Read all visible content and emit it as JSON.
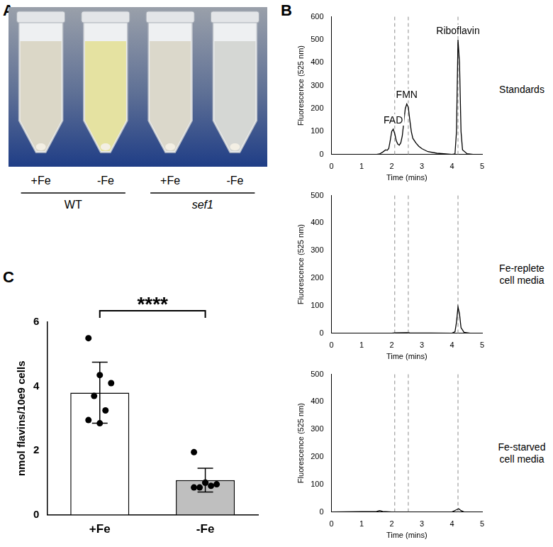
{
  "photo": {
    "panel_label": "A",
    "tubes": [
      {
        "condition": "+Fe",
        "color": "#d9d5c4"
      },
      {
        "condition": "-Fe",
        "color": "#e4e09c"
      },
      {
        "condition": "+Fe",
        "color": "#d9d6c8"
      },
      {
        "condition": "-Fe",
        "color": "#d3d5d2"
      }
    ],
    "groups": [
      {
        "label": "WT",
        "italic": false
      },
      {
        "label": "sef1",
        "italic": true
      }
    ]
  },
  "chart_data": [
    {
      "type": "line",
      "panel_label": "B",
      "title": "Standards",
      "xlabel": "Time (mins)",
      "ylabel": "Fluorescence (525 nm)",
      "color": "#000000",
      "x": [
        0,
        1.0,
        1.5,
        1.6,
        1.7,
        1.8,
        1.85,
        1.9,
        1.95,
        2.0,
        2.05,
        2.1,
        2.15,
        2.2,
        2.25,
        2.3,
        2.35,
        2.4,
        2.45,
        2.5,
        2.55,
        2.6,
        2.65,
        2.7,
        2.8,
        2.9,
        3.0,
        3.2,
        3.5,
        3.8,
        4.0,
        4.1,
        4.15,
        4.2,
        4.25,
        4.3,
        4.35,
        4.5,
        4.7,
        5.0
      ],
      "values": [
        0,
        0,
        0,
        2,
        10,
        20,
        18,
        25,
        60,
        100,
        110,
        90,
        60,
        45,
        40,
        50,
        80,
        140,
        200,
        220,
        205,
        150,
        100,
        70,
        50,
        35,
        25,
        12,
        5,
        2,
        0,
        2,
        100,
        500,
        400,
        100,
        20,
        3,
        0,
        0
      ],
      "annotations": [
        {
          "text": "FAD",
          "x": 2.05,
          "y": 110
        },
        {
          "text": "FMN",
          "x": 2.5,
          "y": 220
        },
        {
          "text": "Riboflavin",
          "x": 4.2,
          "y": 500
        }
      ],
      "reference_lines": [
        2.1,
        2.55,
        4.2
      ],
      "line_style": "dashed",
      "xlim": [
        0,
        5
      ],
      "xticks": [
        0,
        1,
        2,
        3,
        4,
        5
      ],
      "ylim": [
        0,
        600
      ],
      "yticks": [
        0,
        100,
        200,
        300,
        400,
        500,
        600
      ],
      "grid": false
    },
    {
      "type": "line",
      "title": "Fe-replete cell media",
      "xlabel": "Time (mins)",
      "ylabel": "Fluorescence (525 nm)",
      "color": "#000000",
      "x": [
        0,
        2.0,
        2.1,
        2.5,
        2.6,
        4.0,
        4.1,
        4.15,
        4.2,
        4.25,
        4.3,
        4.4,
        4.6,
        5.0
      ],
      "values": [
        0,
        0,
        1,
        2,
        1,
        0,
        5,
        40,
        95,
        70,
        20,
        3,
        0,
        0
      ],
      "reference_lines": [
        2.1,
        2.55,
        4.2
      ],
      "line_style": "dashed",
      "xlim": [
        0,
        5
      ],
      "xticks": [
        0,
        1,
        2,
        3,
        4,
        5
      ],
      "ylim": [
        0,
        500
      ],
      "yticks": [
        0,
        100,
        200,
        300,
        400,
        500
      ],
      "grid": false
    },
    {
      "type": "line",
      "title": "Fe-starved cell media",
      "xlabel": "Time (mins)",
      "ylabel": "Fluorescence (525 nm)",
      "color": "#000000",
      "x": [
        0,
        1.5,
        1.6,
        1.7,
        2.0,
        4.0,
        4.15,
        4.22,
        4.3,
        4.4,
        5.0
      ],
      "values": [
        0,
        2,
        5,
        2,
        0,
        0,
        8,
        12,
        5,
        0,
        0
      ],
      "reference_lines": [
        2.1,
        2.55,
        4.2
      ],
      "line_style": "dashed",
      "xlim": [
        0,
        5
      ],
      "xticks": [
        0,
        1,
        2,
        3,
        4,
        5
      ],
      "ylim": [
        0,
        500
      ],
      "yticks": [
        0,
        100,
        200,
        300,
        400,
        500
      ],
      "grid": false
    },
    {
      "type": "bar",
      "panel_label": "C",
      "ylabel": "nmol flavins/10e9 cells",
      "categories": [
        "+Fe",
        "-Fe"
      ],
      "values": [
        3.8,
        1.08
      ],
      "error": [
        0.95,
        0.37
      ],
      "points": [
        [
          5.5,
          4.35,
          4.1,
          3.7,
          3.25,
          2.95,
          2.85
        ],
        [
          1.95,
          1.0,
          0.95,
          0.85,
          0.9,
          0.85,
          1.0
        ]
      ],
      "colors": [
        "#ffffff",
        "#bfbfbf"
      ],
      "annotation": "****",
      "ylim": [
        0,
        6
      ],
      "yticks": [
        0,
        2,
        4,
        6
      ],
      "grid": false
    }
  ]
}
